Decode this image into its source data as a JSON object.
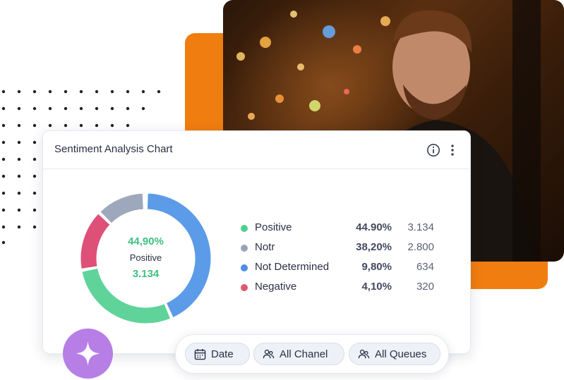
{
  "card": {
    "title": "Sentiment Analysis Chart",
    "icons": [
      "info-icon",
      "more-vertical-icon"
    ]
  },
  "donut_center": {
    "percent": "44,90%",
    "label": "Positive",
    "count": "3.134"
  },
  "chart_data": {
    "type": "pie",
    "categories": [
      "Positive",
      "Notr",
      "Not Determined",
      "Negative"
    ],
    "values": [
      44.9,
      38.2,
      9.8,
      4.1
    ],
    "counts": [
      3134,
      2800,
      634,
      320
    ],
    "title": "Sentiment Analysis Chart",
    "legend_placement": "right"
  },
  "legend": [
    {
      "name": "Positive",
      "percent": "44.90%",
      "count": "3.134",
      "color": "#4fcf8d"
    },
    {
      "name": "Notr",
      "percent": "38,20%",
      "count": "2.800",
      "color": "#9aa4b8"
    },
    {
      "name": "Not Determined",
      "percent": "9,80%",
      "count": "634",
      "color": "#4d8ee6"
    },
    {
      "name": "Negative",
      "percent": "4,10%",
      "count": "320",
      "color": "#e0566e"
    }
  ],
  "donut_colors": {
    "blue": "#5b9be8",
    "green": "#5fd39a",
    "pink": "#de5078",
    "gray": "#9ea8bc"
  },
  "filters": [
    {
      "label": "Date",
      "icon": "calendar-icon"
    },
    {
      "label": "All Chanel",
      "icon": "users-icon"
    },
    {
      "label": "All Queues",
      "icon": "users-icon"
    }
  ],
  "accent": {
    "orange": "#f07d0f",
    "sparkle_bg": "#b77ee6"
  }
}
